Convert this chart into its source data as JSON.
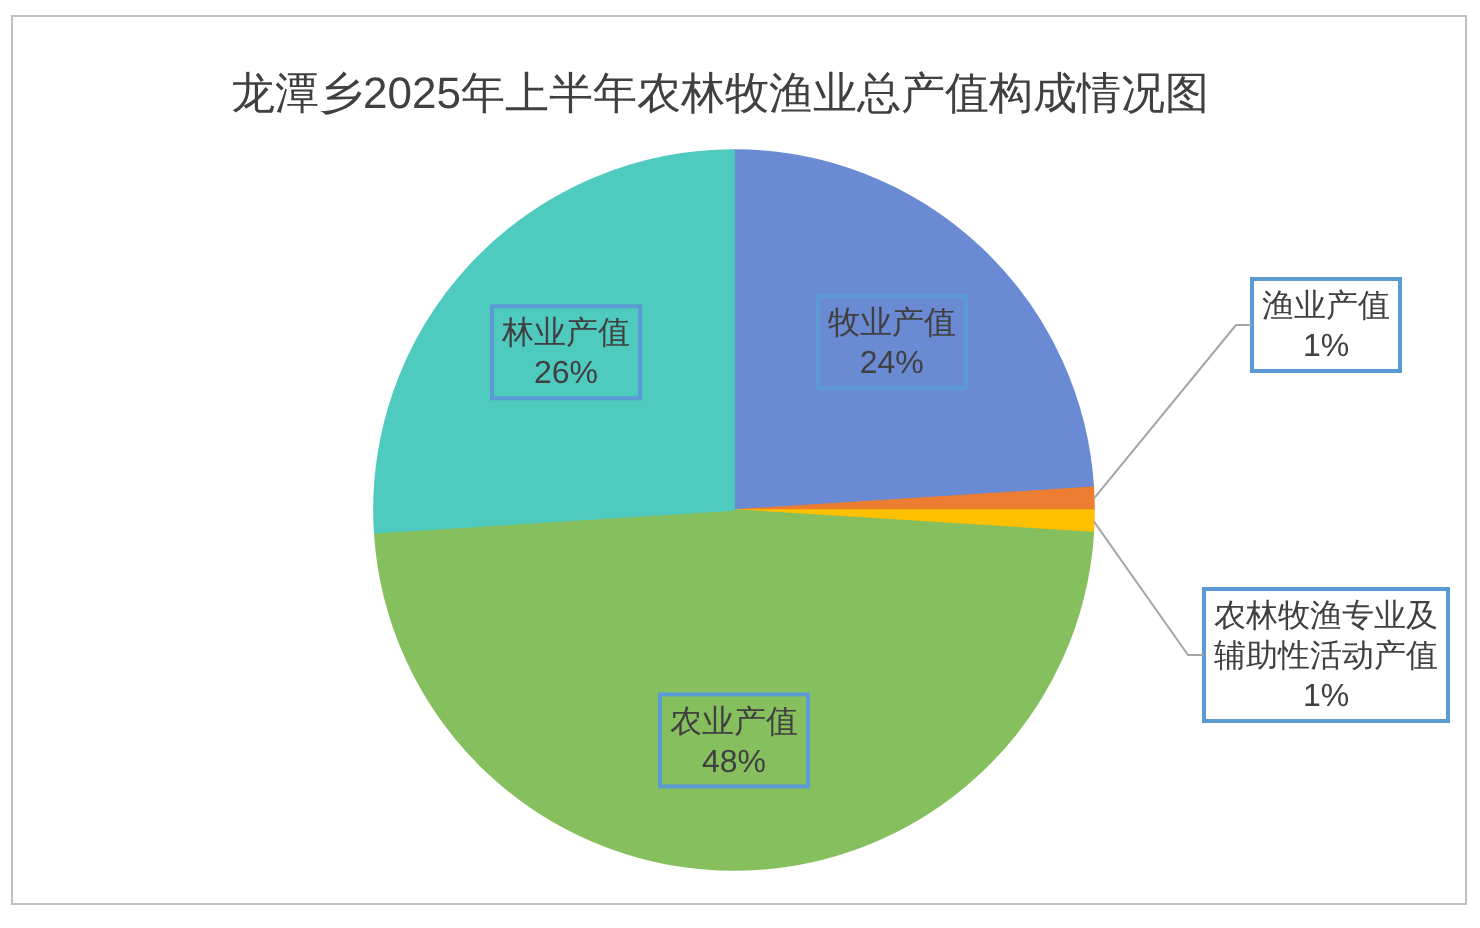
{
  "chart_data": {
    "type": "pie",
    "title": "龙潭乡2025年上半年农林牧渔业总产值构成情况图",
    "categories": [
      "牧业产值",
      "渔业产值",
      "农林牧渔专业及辅助性活动产值",
      "农业产值",
      "林业产值"
    ],
    "values": [
      24,
      1,
      1,
      48,
      26
    ],
    "colors": [
      "#6a8bd4",
      "#ed7d31",
      "#ffc000",
      "#86bf5e",
      "#4fcabf"
    ],
    "value_labels": [
      "24%",
      "1%",
      "1%",
      "48%",
      "26%"
    ]
  }
}
